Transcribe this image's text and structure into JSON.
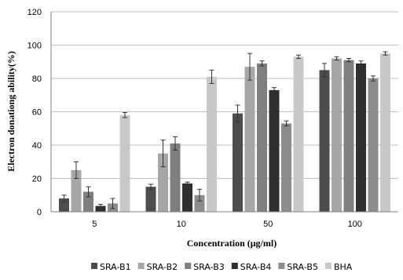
{
  "chart_data": {
    "type": "bar",
    "xlabel": "Concentration (μg/ml)",
    "ylabel": "Electron donationg ability(%)",
    "categories": [
      "5",
      "10",
      "50",
      "100"
    ],
    "ylim": [
      0,
      120
    ],
    "yticks": [
      "0",
      "20",
      "40",
      "60",
      "80",
      "100",
      "120"
    ],
    "grid": true,
    "legend_position": "bottom",
    "series": [
      {
        "name": "SRA-B1",
        "color": "#4d4d4d",
        "values": [
          8,
          15,
          59,
          85
        ],
        "errors": [
          2,
          1.5,
          5,
          4
        ]
      },
      {
        "name": "SRA-B2",
        "color": "#a6a6a6",
        "values": [
          25,
          35,
          87,
          92
        ],
        "errors": [
          5,
          8,
          8,
          1
        ]
      },
      {
        "name": "SRA-B3",
        "color": "#7f7f7f",
        "values": [
          12,
          41,
          89,
          91
        ],
        "errors": [
          3,
          4,
          1.5,
          1
        ]
      },
      {
        "name": "SRA-B4",
        "color": "#2f2f2f",
        "values": [
          3.5,
          17,
          73,
          89
        ],
        "errors": [
          1,
          0.8,
          1.5,
          1.5
        ]
      },
      {
        "name": "SRA-B5",
        "color": "#8c8c8c",
        "values": [
          5,
          10,
          53,
          80
        ],
        "errors": [
          3,
          3.5,
          1.5,
          1.5
        ]
      },
      {
        "name": "BHA",
        "color": "#c8c8c8",
        "values": [
          58,
          81,
          93,
          95
        ],
        "errors": [
          1.5,
          4,
          1,
          1
        ]
      }
    ]
  }
}
